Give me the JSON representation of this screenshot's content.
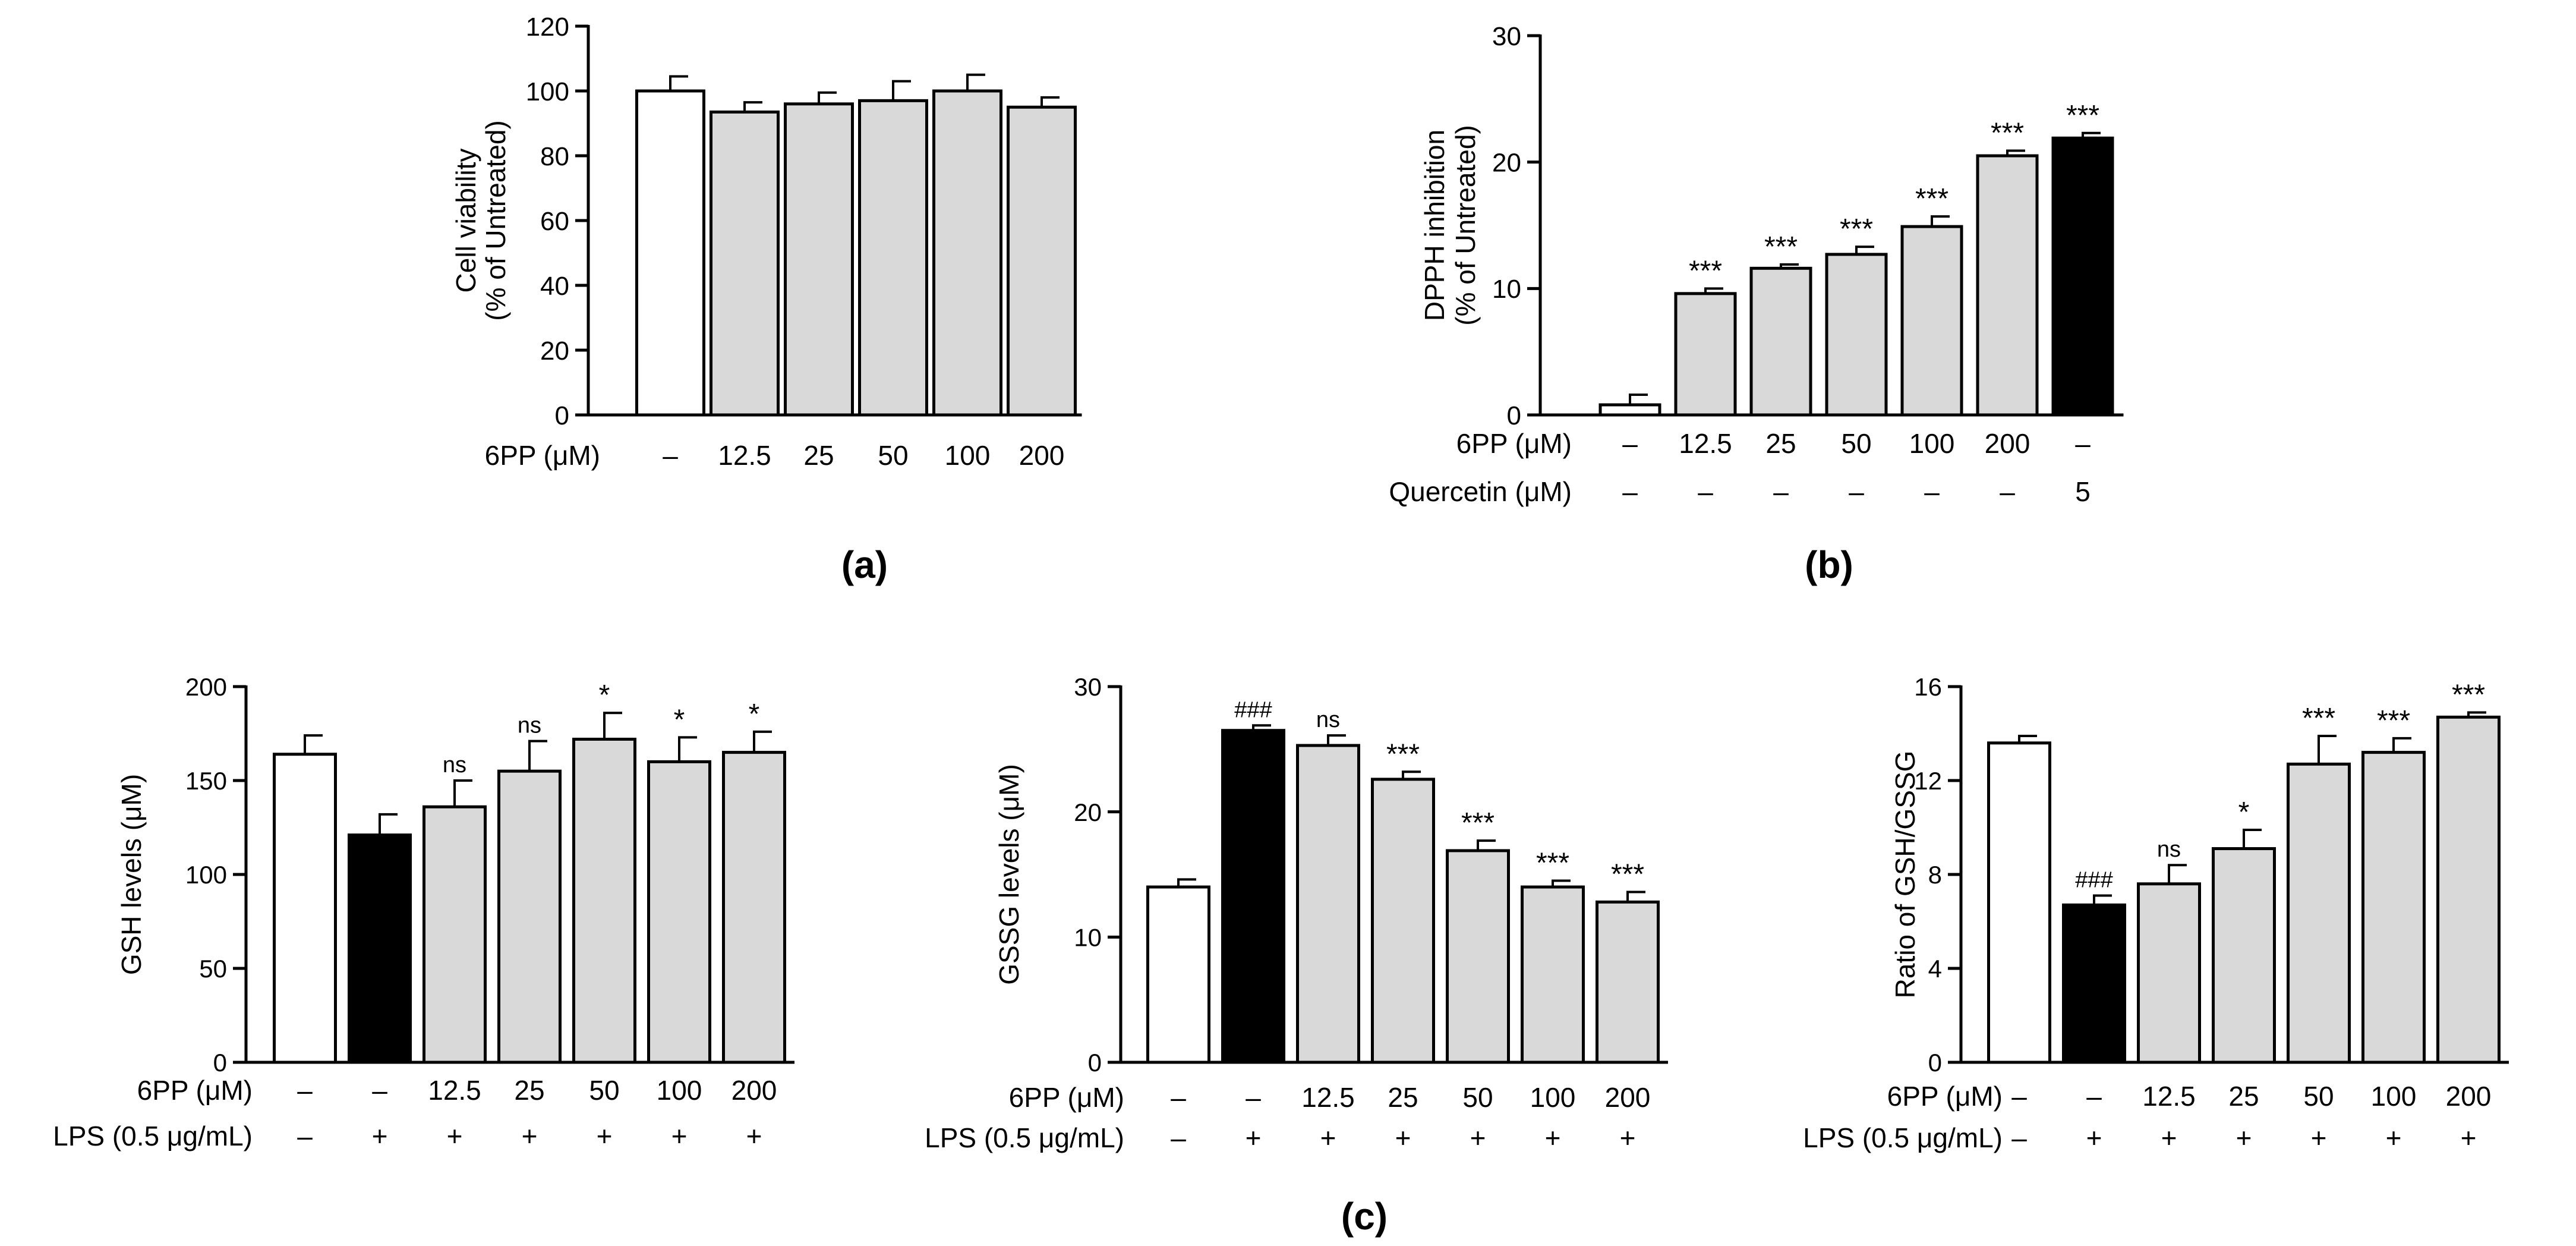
{
  "figure": {
    "panel_labels": [
      "(a)",
      "(b)",
      "(c)"
    ],
    "colors": {
      "untreated": "#FFFFFF",
      "treated": "#D9D9D9",
      "black": "#000000",
      "axis": "#000000"
    }
  },
  "chart_data": [
    {
      "id": "a",
      "type": "bar",
      "panel": "(a)",
      "ylabel": [
        "Cell viability",
        "(% of Untreated)"
      ],
      "ylim": [
        0,
        120
      ],
      "yticks": [
        0,
        20,
        40,
        60,
        80,
        100,
        120
      ],
      "categories": [
        "Untreated",
        "12.5",
        "25",
        "50",
        "100",
        "200"
      ],
      "values": [
        100,
        93.5,
        96,
        97,
        100,
        95
      ],
      "errors": [
        4.5,
        3,
        3.5,
        6,
        5,
        3
      ],
      "fills": [
        "white",
        "gray",
        "gray",
        "gray",
        "gray",
        "gray"
      ],
      "annotations": [
        "",
        "",
        "",
        "",
        "",
        ""
      ],
      "rows": [
        {
          "label": "6PP (μM)",
          "values": [
            "–",
            "12.5",
            "25",
            "50",
            "100",
            "200"
          ]
        }
      ]
    },
    {
      "id": "b",
      "type": "bar",
      "panel": "(b)",
      "ylabel": [
        "DPPH inhibition",
        "(% of Untreated)"
      ],
      "ylim": [
        0,
        30
      ],
      "yticks": [
        0,
        10,
        20,
        30
      ],
      "categories": [
        "Untreated",
        "12.5",
        "25",
        "50",
        "100",
        "200",
        "Quercetin"
      ],
      "values": [
        0.8,
        9.6,
        11.6,
        12.7,
        14.9,
        20.5,
        21.9
      ],
      "errors": [
        0.8,
        0.4,
        0.3,
        0.6,
        0.8,
        0.4,
        0.4
      ],
      "fills": [
        "white",
        "gray",
        "gray",
        "gray",
        "gray",
        "gray",
        "black"
      ],
      "annotations": [
        "",
        "***",
        "***",
        "***",
        "***",
        "***",
        "***"
      ],
      "rows": [
        {
          "label": "6PP (μM)",
          "values": [
            "–",
            "12.5",
            "25",
            "50",
            "100",
            "200",
            "–"
          ]
        },
        {
          "label": "Quercetin (μM)",
          "values": [
            "–",
            "–",
            "–",
            "–",
            "–",
            "–",
            "5"
          ]
        }
      ]
    },
    {
      "id": "c1",
      "type": "bar",
      "panel": "(c)",
      "ylabel": [
        "GSH levels (μM)"
      ],
      "ylim": [
        0,
        200
      ],
      "yticks": [
        0,
        50,
        100,
        150,
        200
      ],
      "categories": [
        "Untreated",
        "LPS",
        "12.5",
        "25",
        "50",
        "100",
        "200"
      ],
      "values": [
        164,
        121,
        136,
        155,
        172,
        160,
        165
      ],
      "errors": [
        10,
        11,
        14,
        16,
        14,
        13,
        11
      ],
      "fills": [
        "white",
        "black",
        "gray",
        "gray",
        "gray",
        "gray",
        "gray"
      ],
      "annotations": [
        "",
        "",
        "ns",
        "ns",
        "*",
        "*",
        "*"
      ],
      "rows": [
        {
          "label": "6PP (μM)",
          "values": [
            "–",
            "–",
            "12.5",
            "25",
            "50",
            "100",
            "200"
          ]
        },
        {
          "label": "LPS (0.5 μg/mL)",
          "values": [
            "–",
            "+",
            "+",
            "+",
            "+",
            "+",
            "+"
          ]
        }
      ]
    },
    {
      "id": "c2",
      "type": "bar",
      "panel": "(c)",
      "ylabel": [
        "GSSG levels (μM)"
      ],
      "ylim": [
        0,
        30
      ],
      "yticks": [
        0,
        10,
        20,
        30
      ],
      "categories": [
        "Untreated",
        "LPS",
        "12.5",
        "25",
        "50",
        "100",
        "200"
      ],
      "values": [
        14,
        26.5,
        25.3,
        22.6,
        16.9,
        14,
        12.8
      ],
      "errors": [
        0.6,
        0.4,
        0.8,
        0.6,
        0.8,
        0.5,
        0.8
      ],
      "fills": [
        "white",
        "black",
        "gray",
        "gray",
        "gray",
        "gray",
        "gray"
      ],
      "annotations": [
        "",
        "###",
        "ns",
        "***",
        "***",
        "***",
        "***"
      ],
      "rows": [
        {
          "label": "6PP (μM)",
          "values": [
            "–",
            "–",
            "12.5",
            "25",
            "50",
            "100",
            "200"
          ]
        },
        {
          "label": "LPS (0.5 μg/mL)",
          "values": [
            "–",
            "+",
            "+",
            "+",
            "+",
            "+",
            "+"
          ]
        }
      ]
    },
    {
      "id": "c3",
      "type": "bar",
      "panel": "(c)",
      "ylabel": [
        "Ratio of GSH/GSSG"
      ],
      "ylim": [
        0,
        16
      ],
      "yticks": [
        0,
        4,
        8,
        12,
        16
      ],
      "categories": [
        "Untreated",
        "LPS",
        "12.5",
        "25",
        "50",
        "100",
        "200"
      ],
      "values": [
        13.6,
        6.7,
        7.6,
        9.1,
        12.7,
        13.2,
        14.7
      ],
      "errors": [
        0.3,
        0.4,
        0.8,
        0.8,
        1.2,
        0.6,
        0.2
      ],
      "fills": [
        "white",
        "black",
        "gray",
        "gray",
        "gray",
        "gray",
        "gray"
      ],
      "annotations": [
        "",
        "###",
        "ns",
        "*",
        "***",
        "***",
        "***"
      ],
      "rows": [
        {
          "label": "6PP (μM)",
          "values": [
            "–",
            "–",
            "12.5",
            "25",
            "50",
            "100",
            "200"
          ]
        },
        {
          "label": "LPS (0.5 μg/mL)",
          "values": [
            "–",
            "+",
            "+",
            "+",
            "+",
            "+",
            "+"
          ]
        }
      ]
    }
  ]
}
